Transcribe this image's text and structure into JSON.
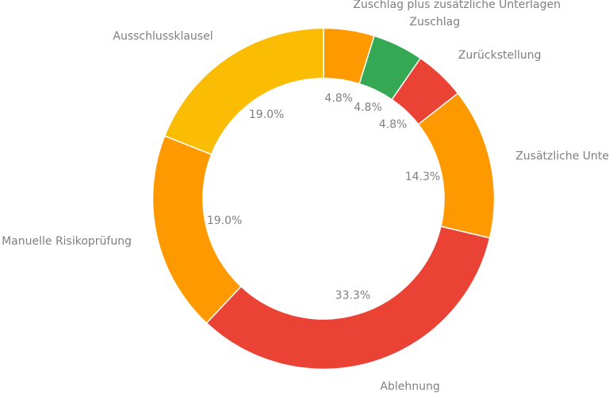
{
  "chart_data": {
    "type": "pie",
    "style": "donut",
    "start": "12 o'clock",
    "direction": "clockwise",
    "legend": "none",
    "categories": [
      "Zuschlag plus zusätzliche Unterlagen",
      "Zuschlag",
      "Zurückstellung",
      "Zusätzliche Unterlagen",
      "Ablehnung",
      "Manuelle Risikoprüfung",
      "Ausschlussklausel"
    ],
    "values": [
      4.8,
      4.8,
      4.8,
      14.3,
      33.3,
      19.0,
      19.0
    ],
    "value_labels": [
      "4.8%",
      "4.8%",
      "4.8%",
      "14.3%",
      "33.3%",
      "19.0%",
      "19.0%"
    ],
    "colors": [
      "#ff9900",
      "#34a853",
      "#ea4335",
      "#ff9900",
      "#ea4335",
      "#ff9900",
      "#fbbc04"
    ]
  }
}
